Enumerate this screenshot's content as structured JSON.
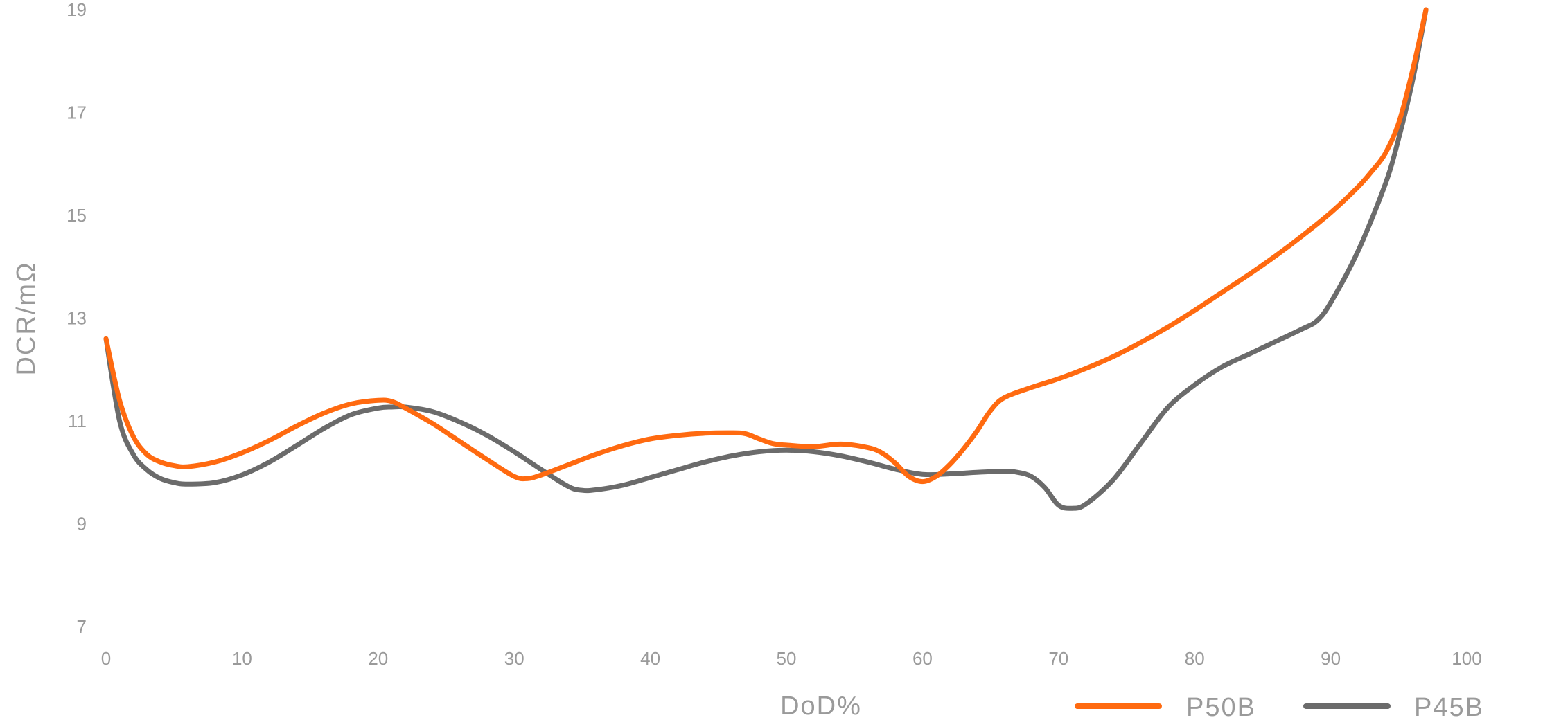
{
  "chart_data": {
    "type": "line",
    "title": "",
    "xlabel": "DoD%",
    "ylabel": "DCR/mΩ",
    "xlim": [
      0,
      100
    ],
    "ylim": [
      7,
      19
    ],
    "x_ticks": [
      0,
      10,
      20,
      30,
      40,
      50,
      60,
      70,
      80,
      90,
      100
    ],
    "y_ticks": [
      7,
      9,
      11,
      13,
      15,
      17,
      19
    ],
    "grid": false,
    "legend": "bottom-right",
    "series": [
      {
        "name": "P50B",
        "color": "#FF6A10",
        "x": [
          0,
          1,
          2,
          3,
          4,
          5,
          6,
          8,
          10,
          12,
          14,
          16,
          18,
          20,
          21,
          22,
          24,
          26,
          28,
          30,
          31,
          32,
          34,
          36,
          38,
          40,
          42,
          44,
          46,
          47,
          48,
          49,
          50,
          52,
          54,
          56,
          57,
          58,
          59,
          60,
          61,
          62,
          63,
          64,
          65,
          66,
          68,
          70,
          72,
          74,
          76,
          78,
          80,
          82,
          84,
          86,
          88,
          90,
          92,
          93,
          94,
          95,
          96,
          97
        ],
        "y": [
          12.6,
          11.4,
          10.7,
          10.35,
          10.2,
          10.13,
          10.11,
          10.2,
          10.38,
          10.62,
          10.9,
          11.15,
          11.33,
          11.4,
          11.38,
          11.25,
          10.95,
          10.6,
          10.25,
          9.92,
          9.88,
          9.95,
          10.15,
          10.35,
          10.52,
          10.65,
          10.72,
          10.76,
          10.77,
          10.75,
          10.65,
          10.56,
          10.53,
          10.5,
          10.55,
          10.48,
          10.38,
          10.18,
          9.92,
          9.82,
          9.92,
          10.15,
          10.45,
          10.8,
          11.2,
          11.45,
          11.65,
          11.82,
          12.02,
          12.25,
          12.52,
          12.82,
          13.15,
          13.5,
          13.85,
          14.22,
          14.62,
          15.05,
          15.55,
          15.85,
          16.2,
          16.8,
          17.8,
          19.0
        ]
      },
      {
        "name": "P45B",
        "color": "#6B6B6B",
        "x": [
          0,
          1,
          2,
          3,
          4,
          5,
          6,
          8,
          10,
          12,
          14,
          16,
          18,
          20,
          21,
          22,
          24,
          26,
          28,
          30,
          32,
          34,
          35,
          36,
          38,
          40,
          42,
          44,
          46,
          48,
          50,
          52,
          54,
          56,
          58,
          60,
          62,
          64,
          66,
          67,
          68,
          69,
          70,
          71,
          72,
          74,
          76,
          78,
          80,
          82,
          84,
          86,
          88,
          89,
          90,
          92,
          94,
          95,
          96,
          97
        ],
        "y": [
          12.6,
          11.0,
          10.35,
          10.05,
          9.88,
          9.8,
          9.77,
          9.8,
          9.95,
          10.2,
          10.52,
          10.85,
          11.12,
          11.25,
          11.27,
          11.27,
          11.18,
          10.98,
          10.72,
          10.4,
          10.05,
          9.72,
          9.65,
          9.66,
          9.75,
          9.9,
          10.05,
          10.2,
          10.32,
          10.4,
          10.43,
          10.4,
          10.32,
          10.2,
          10.06,
          9.96,
          9.97,
          10.0,
          10.02,
          10.0,
          9.92,
          9.7,
          9.36,
          9.3,
          9.38,
          9.85,
          10.55,
          11.25,
          11.7,
          12.05,
          12.3,
          12.55,
          12.8,
          12.95,
          13.3,
          14.3,
          15.6,
          16.5,
          17.6,
          19.0
        ]
      }
    ]
  }
}
